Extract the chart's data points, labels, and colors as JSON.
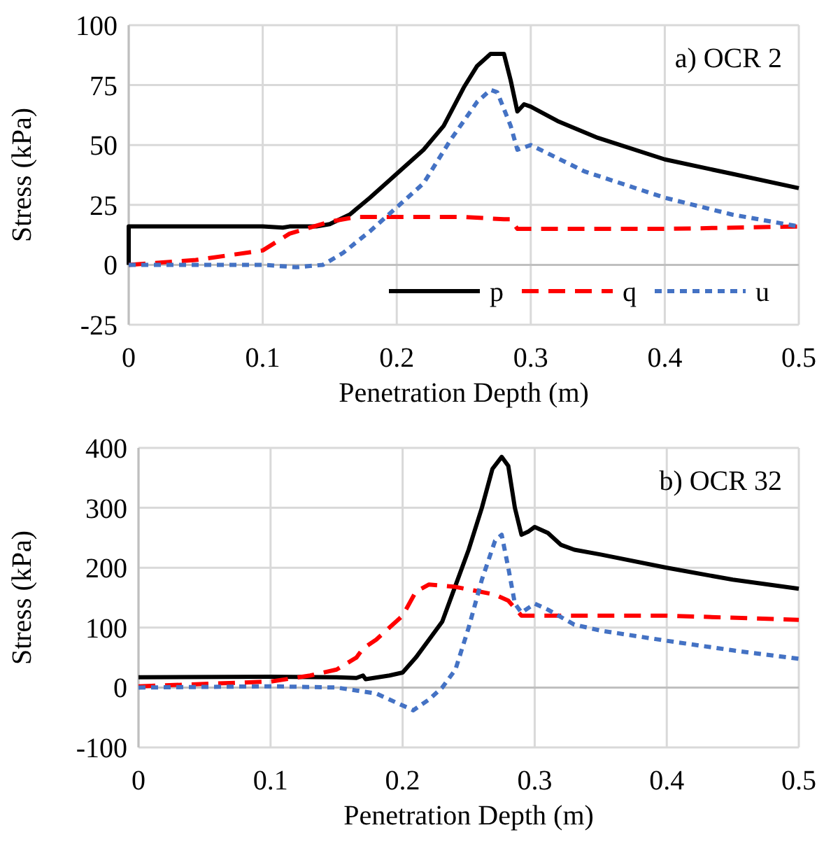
{
  "chart_data": [
    {
      "type": "line",
      "xlabel": "Penetration Depth (m)",
      "ylabel": "Stress (kPa)",
      "annotations": [
        "a) OCR 2"
      ],
      "xlim": [
        0,
        0.5
      ],
      "xticks": [
        0,
        0.1,
        0.2,
        0.3,
        0.4,
        0.5
      ],
      "ylim": [
        -25,
        100
      ],
      "yticks": [
        -25,
        0,
        25,
        50,
        75,
        100
      ],
      "grid": true,
      "legend": "bottom right",
      "series": [
        {
          "name": "p",
          "color": "#000000",
          "line_style": "solid",
          "x": [
            0,
            0,
            0.1,
            0.115,
            0.12,
            0.14,
            0.15,
            0.165,
            0.18,
            0.2,
            0.22,
            0.235,
            0.25,
            0.26,
            0.27,
            0.28,
            0.285,
            0.29,
            0.295,
            0.3,
            0.32,
            0.35,
            0.4,
            0.45,
            0.5
          ],
          "values": [
            0,
            16,
            16,
            15.5,
            16,
            16,
            17,
            21,
            28,
            38,
            48,
            58,
            74,
            83,
            88,
            88,
            77,
            64,
            67,
            66,
            60,
            53,
            44,
            38,
            32
          ]
        },
        {
          "name": "q",
          "color": "#ff0000",
          "line_style": "dashed",
          "x": [
            0,
            0.05,
            0.1,
            0.12,
            0.15,
            0.17,
            0.2,
            0.25,
            0.28,
            0.285,
            0.29,
            0.3,
            0.4,
            0.5
          ],
          "values": [
            0,
            2,
            6,
            13,
            18,
            20,
            20,
            20,
            19,
            19,
            15,
            15,
            15,
            16
          ]
        },
        {
          "name": "u",
          "color": "#4472c4",
          "line_style": "dotted",
          "x": [
            0,
            0.1,
            0.125,
            0.145,
            0.16,
            0.18,
            0.2,
            0.22,
            0.24,
            0.26,
            0.27,
            0.275,
            0.285,
            0.29,
            0.3,
            0.34,
            0.4,
            0.45,
            0.5
          ],
          "values": [
            0,
            0,
            -1,
            0,
            5,
            14,
            24,
            34,
            52,
            68,
            73,
            72,
            58,
            48,
            50,
            39,
            28,
            21,
            16
          ]
        }
      ]
    },
    {
      "type": "line",
      "xlabel": "Penetration Depth (m)",
      "ylabel": "Stress (kPa)",
      "annotations": [
        "b) OCR 32"
      ],
      "xlim": [
        0,
        0.5
      ],
      "xticks": [
        0,
        0.1,
        0.2,
        0.3,
        0.4,
        0.5
      ],
      "ylim": [
        -100,
        400
      ],
      "yticks": [
        -100,
        0,
        100,
        200,
        300,
        400
      ],
      "grid": true,
      "series": [
        {
          "color": "#000000",
          "line_style": "solid",
          "x": [
            0,
            0.1,
            0.15,
            0.165,
            0.17,
            0.172,
            0.19,
            0.2,
            0.21,
            0.22,
            0.23,
            0.24,
            0.25,
            0.26,
            0.268,
            0.275,
            0.28,
            0.285,
            0.29,
            0.295,
            0.3,
            0.31,
            0.32,
            0.33,
            0.35,
            0.4,
            0.45,
            0.5
          ],
          "values": [
            17,
            18,
            17,
            16,
            20,
            14,
            20,
            25,
            50,
            80,
            110,
            170,
            230,
            300,
            365,
            385,
            370,
            300,
            255,
            260,
            268,
            258,
            238,
            230,
            222,
            200,
            180,
            165
          ]
        },
        {
          "color": "#ff0000",
          "line_style": "dashed",
          "x": [
            0,
            0.1,
            0.13,
            0.15,
            0.165,
            0.17,
            0.18,
            0.2,
            0.21,
            0.22,
            0.24,
            0.27,
            0.28,
            0.29,
            0.3,
            0.4,
            0.5
          ],
          "values": [
            2,
            10,
            20,
            30,
            50,
            65,
            80,
            120,
            160,
            172,
            168,
            155,
            145,
            120,
            120,
            120,
            113
          ]
        },
        {
          "color": "#4472c4",
          "line_style": "dotted",
          "x": [
            0,
            0.1,
            0.15,
            0.18,
            0.2,
            0.208,
            0.22,
            0.23,
            0.24,
            0.25,
            0.26,
            0.27,
            0.275,
            0.28,
            0.285,
            0.29,
            0.3,
            0.31,
            0.33,
            0.35,
            0.4,
            0.45,
            0.5
          ],
          "values": [
            0,
            2,
            0,
            -10,
            -30,
            -38,
            -20,
            0,
            30,
            100,
            180,
            245,
            255,
            200,
            140,
            125,
            140,
            130,
            105,
            95,
            78,
            62,
            48
          ]
        }
      ]
    }
  ]
}
